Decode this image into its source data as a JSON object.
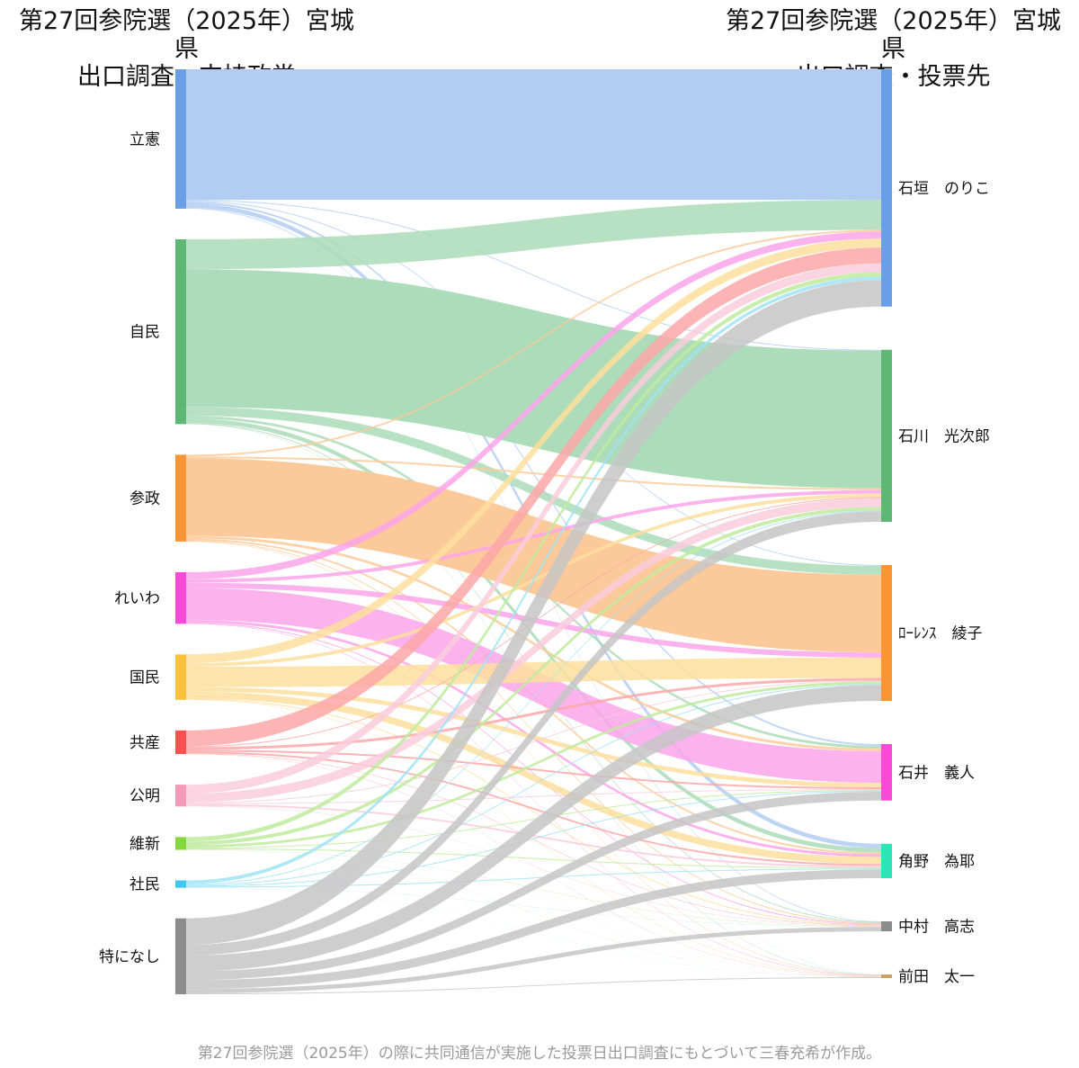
{
  "titles": {
    "left_line1": "第27回参院選（2025年）宮城県",
    "left_line2": "出口調査・支持政党",
    "right_line1": "第27回参院選（2025年）宮城県",
    "right_line2": "出口調査・投票先"
  },
  "caption": "第27回参院選（2025年）の際に共同通信が実施した投票日出口調査にもとづいて三春充希が作成。",
  "chart_data": {
    "type": "sankey",
    "title": "",
    "sources": [
      {
        "name": "立憲",
        "color": "#6a9ee6",
        "link_color": "#b3cdf2"
      },
      {
        "name": "自民",
        "color": "#5cb874",
        "link_color": "#acdcb9"
      },
      {
        "name": "参政",
        "color": "#f99535",
        "link_color": "#fcca9a"
      },
      {
        "name": "れいわ",
        "color": "#f84ad6",
        "link_color": "#fca4ea"
      },
      {
        "name": "国民",
        "color": "#fcc23e",
        "link_color": "#fddf9e"
      },
      {
        "name": "共産",
        "color": "#fc5050",
        "link_color": "#fda7a7"
      },
      {
        "name": "公明",
        "color": "#f49ab9",
        "link_color": "#f9ccdc"
      },
      {
        "name": "維新",
        "color": "#82d83c",
        "link_color": "#c0eb9d"
      },
      {
        "name": "社民",
        "color": "#42c8ec",
        "link_color": "#a0e3f5"
      },
      {
        "name": "特になし",
        "color": "#8c8c8c",
        "link_color": "#c5c5c5"
      }
    ],
    "targets": [
      {
        "name": "石垣　のりこ",
        "color": "#6a9ee6"
      },
      {
        "name": "石川　光次郎",
        "color": "#5cb874"
      },
      {
        "name": "ﾛｰﾚﾝｽ　綾子",
        "color": "#f99535"
      },
      {
        "name": "石井　義人",
        "color": "#f84ad6"
      },
      {
        "name": "角野　為耶",
        "color": "#2ee5b5"
      },
      {
        "name": "中村　高志",
        "color": "#8c8c8c"
      },
      {
        "name": "前田　太一",
        "color": "#c8a060"
      }
    ],
    "flows": [
      [
        148,
        1,
        1,
        2,
        5,
        0.8,
        0.2
      ],
      [
        34,
        156,
        10,
        3,
        5,
        1,
        0.5
      ],
      [
        2,
        2,
        88,
        3,
        2,
        1,
        0.5
      ],
      [
        8,
        4,
        6,
        36,
        3,
        1,
        0.5
      ],
      [
        10,
        4,
        23,
        5,
        8,
        1,
        0.5
      ],
      [
        18,
        1,
        3,
        2,
        2,
        0.5,
        0.3
      ],
      [
        10,
        10,
        1,
        1,
        2,
        0.5,
        0.2
      ],
      [
        5,
        4,
        3,
        1,
        1,
        0.3,
        0.2
      ],
      [
        4,
        1,
        1,
        1,
        1,
        0.2,
        0.1
      ],
      [
        30,
        12,
        18,
        10,
        10,
        5,
        1
      ]
    ]
  }
}
